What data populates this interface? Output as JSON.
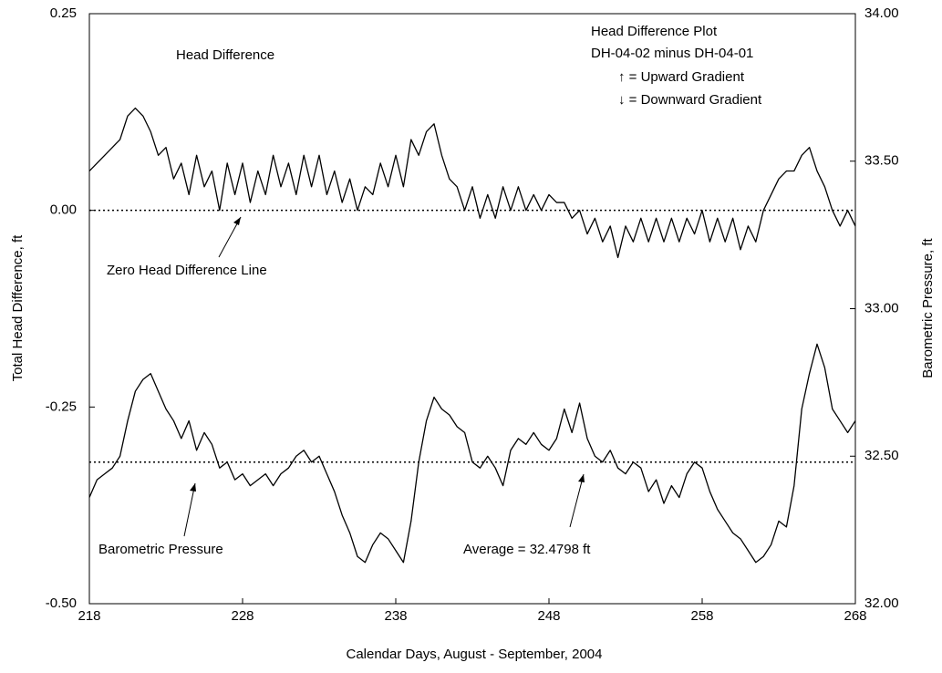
{
  "chart_data": {
    "type": "line",
    "xlabel": "Calendar Days, August - September, 2004",
    "ylabel": "Total Head Difference, ft",
    "y2label": "Barometric Pressure, ft",
    "xlim": [
      218,
      268
    ],
    "xticks": [
      218,
      228,
      238,
      248,
      258,
      268
    ],
    "ylim": [
      -0.5,
      0.25
    ],
    "yticks": [
      0.25,
      {
        "value": 0,
        "label": "0.00"
      },
      -0.25,
      {
        "value": -0.5,
        "label": "-0.50"
      }
    ],
    "y2lim": [
      32,
      34
    ],
    "y2ticks": [
      {
        "value": 34,
        "label": "34.00"
      },
      {
        "value": 33.5,
        "label": "33.50"
      },
      {
        "value": 33,
        "label": "33.00"
      },
      {
        "value": 32.5,
        "label": "32.50"
      },
      {
        "value": 32,
        "label": "32.00"
      }
    ],
    "x": [
      218,
      218.5,
      219,
      219.5,
      220,
      220.5,
      221,
      221.5,
      222,
      222.5,
      223,
      223.5,
      224,
      224.5,
      225,
      225.5,
      226,
      226.5,
      227,
      227.5,
      228,
      228.5,
      229,
      229.5,
      230,
      230.5,
      231,
      231.5,
      232,
      232.5,
      233,
      233.5,
      234,
      234.5,
      235,
      235.5,
      236,
      236.5,
      237,
      237.5,
      238,
      238.5,
      239,
      239.5,
      240,
      240.5,
      241,
      241.5,
      242,
      242.5,
      243,
      243.5,
      244,
      244.5,
      245,
      245.5,
      246,
      246.5,
      247,
      247.5,
      248,
      248.5,
      249,
      249.5,
      250,
      250.5,
      251,
      251.5,
      252,
      252.5,
      253,
      253.5,
      254,
      254.5,
      255,
      255.5,
      256,
      256.5,
      257,
      257.5,
      258,
      258.5,
      259,
      259.5,
      260,
      260.5,
      261,
      261.5,
      262,
      262.5,
      263,
      263.5,
      264,
      264.5,
      265,
      265.5,
      266,
      266.5,
      267,
      267.5,
      268
    ],
    "series": [
      {
        "name": "Head Difference",
        "color": "#000000",
        "axis": "y",
        "values": [
          0.05,
          0.06,
          0.07,
          0.08,
          0.09,
          0.12,
          0.13,
          0.12,
          0.1,
          0.07,
          0.08,
          0.04,
          0.06,
          0.02,
          0.07,
          0.03,
          0.05,
          0.0,
          0.06,
          0.02,
          0.06,
          0.01,
          0.05,
          0.02,
          0.07,
          0.03,
          0.06,
          0.02,
          0.07,
          0.03,
          0.07,
          0.02,
          0.05,
          0.01,
          0.04,
          0.0,
          0.03,
          0.02,
          0.06,
          0.03,
          0.07,
          0.03,
          0.09,
          0.07,
          0.1,
          0.11,
          0.07,
          0.04,
          0.03,
          0.0,
          0.03,
          -0.01,
          0.02,
          -0.01,
          0.03,
          0.0,
          0.03,
          0.0,
          0.02,
          0.0,
          0.02,
          0.01,
          0.01,
          -0.01,
          0.0,
          -0.03,
          -0.01,
          -0.04,
          -0.02,
          -0.06,
          -0.02,
          -0.04,
          -0.01,
          -0.04,
          -0.01,
          -0.04,
          -0.01,
          -0.04,
          -0.01,
          -0.03,
          0.0,
          -0.04,
          -0.01,
          -0.04,
          -0.01,
          -0.05,
          -0.02,
          -0.04,
          0.0,
          0.02,
          0.04,
          0.05,
          0.05,
          0.07,
          0.08,
          0.05,
          0.03,
          0.0,
          -0.02,
          0.0,
          -0.02
        ]
      },
      {
        "name": "Barometric Pressure",
        "color": "#000000",
        "axis": "y2",
        "values": [
          32.36,
          32.42,
          32.44,
          32.46,
          32.5,
          32.62,
          32.72,
          32.76,
          32.78,
          32.72,
          32.66,
          32.62,
          32.56,
          32.62,
          32.52,
          32.58,
          32.54,
          32.46,
          32.48,
          32.42,
          32.44,
          32.4,
          32.42,
          32.44,
          32.4,
          32.44,
          32.46,
          32.5,
          32.52,
          32.48,
          32.5,
          32.44,
          32.38,
          32.3,
          32.24,
          32.16,
          32.14,
          32.2,
          32.24,
          32.22,
          32.18,
          32.14,
          32.28,
          32.48,
          32.62,
          32.7,
          32.66,
          32.64,
          32.6,
          32.58,
          32.48,
          32.46,
          32.5,
          32.46,
          32.4,
          32.52,
          32.56,
          32.54,
          32.58,
          32.54,
          32.52,
          32.56,
          32.66,
          32.58,
          32.68,
          32.56,
          32.5,
          32.48,
          32.52,
          32.46,
          32.44,
          32.48,
          32.46,
          32.38,
          32.42,
          32.34,
          32.4,
          32.36,
          32.44,
          32.48,
          32.46,
          32.38,
          32.32,
          32.28,
          32.24,
          32.22,
          32.18,
          32.14,
          32.16,
          32.2,
          32.28,
          32.26,
          32.4,
          32.66,
          32.78,
          32.88,
          32.8,
          32.66,
          32.62,
          32.58,
          32.62
        ]
      }
    ],
    "reference_lines": [
      {
        "axis": "y",
        "value": 0
      },
      {
        "axis": "y2",
        "value": 32.4798
      }
    ],
    "annotations": [
      "Head Difference",
      "Head Difference Plot",
      "DH-04-02 minus DH-04-01",
      "↑  =  Upward Gradient",
      "↓  =  Downward Gradient",
      "Zero Head Difference Line",
      "Barometric Pressure",
      "Average  =  32.4798 ft"
    ]
  }
}
